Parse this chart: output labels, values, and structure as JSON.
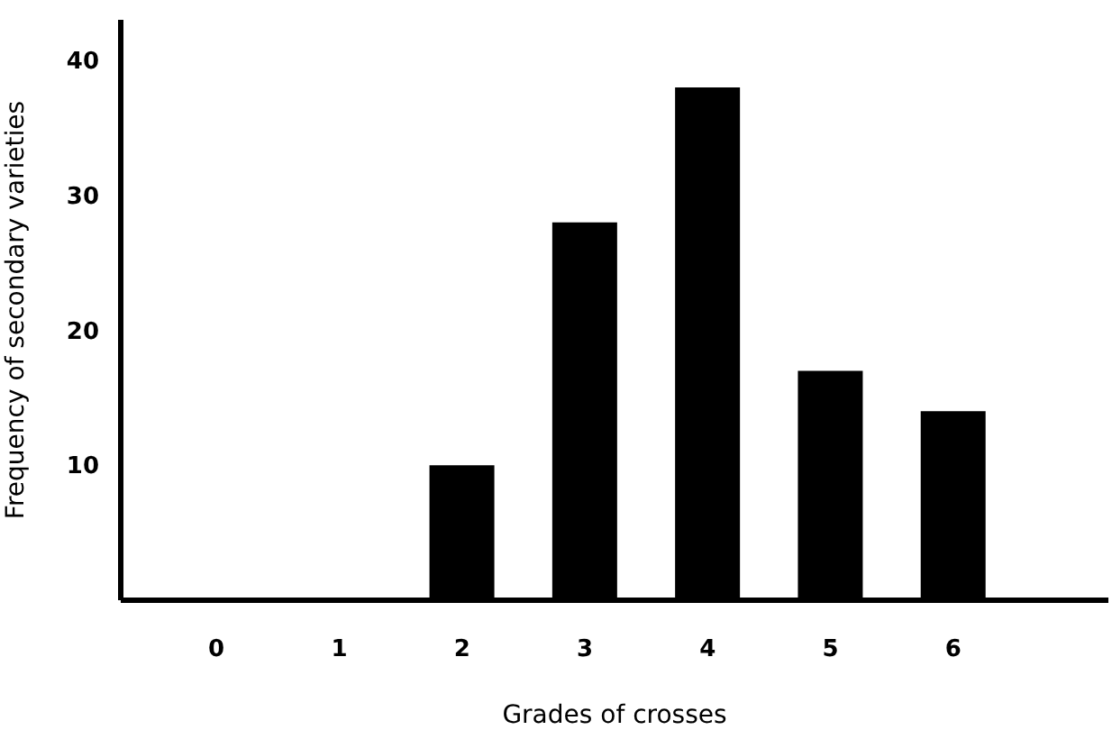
{
  "chart_data": {
    "type": "bar",
    "xlabel": "Grades of crosses",
    "ylabel": "Frequency of secondary varieties",
    "categories": [
      "0",
      "1",
      "2",
      "3",
      "4",
      "5",
      "6"
    ],
    "values": [
      0,
      0,
      10,
      28,
      38,
      17,
      14
    ],
    "color": "#000000",
    "ylim": [
      0,
      43
    ],
    "yticks": [
      10,
      20,
      30,
      40
    ],
    "grid": false,
    "legend": false
  }
}
